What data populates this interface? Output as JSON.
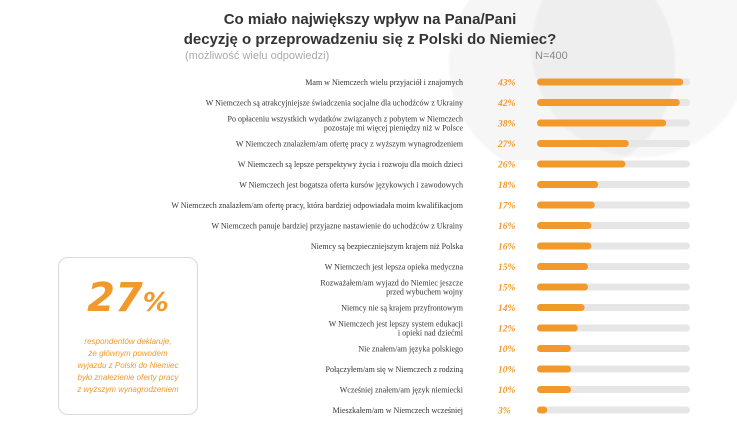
{
  "header": {
    "title_line1": "Co miało największy wpływ na Pana/Pani",
    "title_line2": "decyzję o przeprowadzeniu się z Polski do Niemiec?",
    "subtitle": "(możliwość wielu odpowiedzi)",
    "sample": "N=400"
  },
  "callout": {
    "number": "27",
    "percent_sign": "%",
    "lines": [
      "respondentów deklaruje,",
      "że głównym powodem",
      "wyjazdu z Polski do Niemiec",
      "było znalezienie oferty pracy",
      "z wyższym wynagrodzeniem"
    ]
  },
  "colors": {
    "bar": "#f19a2b",
    "track": "#e6e6e6",
    "accent": "#f19a2b"
  },
  "chart_data": {
    "type": "bar",
    "orientation": "horizontal",
    "unit": "%",
    "xlim": [
      0,
      45
    ],
    "categories": [
      [
        "Mam w Niemczech wielu przyjaciół i znajomych"
      ],
      [
        "W Niemczech są atrakcyjniejsze świadczenia socjalne dla uchodźców z Ukrainy"
      ],
      [
        "Po opłaceniu wszystkich wydatków związanych z pobytem w Niemczech",
        "pozostaje mi więcej pieniędzy niż w Polsce"
      ],
      [
        "W Niemczech znalazłem/am ofertę pracy z wyższym wynagrodzeniem"
      ],
      [
        "W Niemczech są lepsze perspektywy życia i rozwoju dla moich dzieci"
      ],
      [
        "W Niemczech jest bogatsza oferta kursów językowych i zawodowych"
      ],
      [
        "W Niemczech znalazłem/am ofertę pracy, która bardziej odpowiadała moim kwalifikacjom"
      ],
      [
        "W Niemczech panuje bardziej przyjazne nastawienie do uchodźców z Ukrainy"
      ],
      [
        "Niemcy są bezpieczniejszym krajem niż Polska"
      ],
      [
        "W Niemczech jest lepsza opieka medyczna"
      ],
      [
        "Rozważałem/am wyjazd do Niemiec jeszcze",
        "przed wybuchem wojny"
      ],
      [
        "Niemcy nie są krajem przyfrontowym"
      ],
      [
        "W Niemczech jest lepszy system edukacji",
        "i opieki nad dziećmi"
      ],
      [
        "Nie znałem/am języka polskiego"
      ],
      [
        "Połączyłem/am się w Niemczech z rodziną"
      ],
      [
        "Wcześniej znałem/am język niemiecki"
      ],
      [
        "Mieszkałem/am w Niemczech wcześniej"
      ]
    ],
    "values": [
      43,
      42,
      38,
      27,
      26,
      18,
      17,
      16,
      16,
      15,
      15,
      14,
      12,
      10,
      10,
      10,
      3
    ],
    "value_labels": [
      "43%",
      "42%",
      "38%",
      "27%",
      "26%",
      "18%",
      "17%",
      "16%",
      "16%",
      "15%",
      "15%",
      "14%",
      "12%",
      "10%",
      "10%",
      "10%",
      "3%"
    ]
  }
}
